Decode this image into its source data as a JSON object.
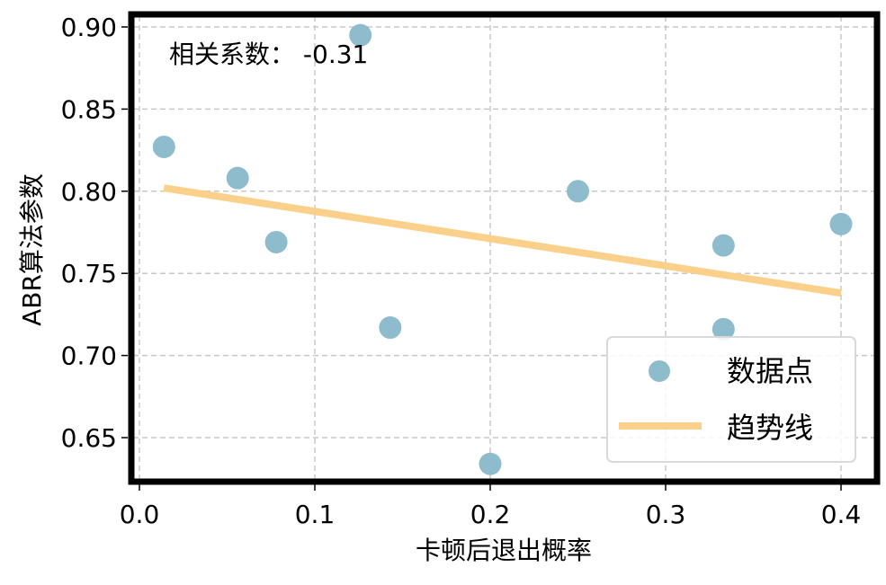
{
  "chart_data": {
    "type": "scatter",
    "title": "",
    "xlabel": "卡顿后退出概率",
    "ylabel": "ABR算法参数",
    "xlim": [
      -0.003,
      0.42
    ],
    "ylim": [
      0.622,
      0.908
    ],
    "xticks": [
      "0.0",
      "0.1",
      "0.2",
      "0.3",
      "0.4"
    ],
    "yticks": [
      "0.65",
      "0.70",
      "0.75",
      "0.80",
      "0.85",
      "0.90"
    ],
    "grid": true,
    "legend_position": "lower right",
    "annotation": "相关系数： -0.31",
    "series": [
      {
        "name": "数据点",
        "kind": "scatter",
        "color": "#8fbccd",
        "x": [
          0.014,
          0.056,
          0.078,
          0.126,
          0.143,
          0.2,
          0.25,
          0.333,
          0.333,
          0.4
        ],
        "y": [
          0.827,
          0.808,
          0.769,
          0.895,
          0.717,
          0.634,
          0.8,
          0.767,
          0.716,
          0.78
        ]
      },
      {
        "name": "趋势线",
        "kind": "line",
        "color": "#fbd08b",
        "x": [
          0.014,
          0.4
        ],
        "y": [
          0.802,
          0.738
        ]
      }
    ],
    "correlation": -0.31
  },
  "legend": {
    "items": [
      {
        "label": "数据点"
      },
      {
        "label": "趋势线"
      }
    ]
  }
}
